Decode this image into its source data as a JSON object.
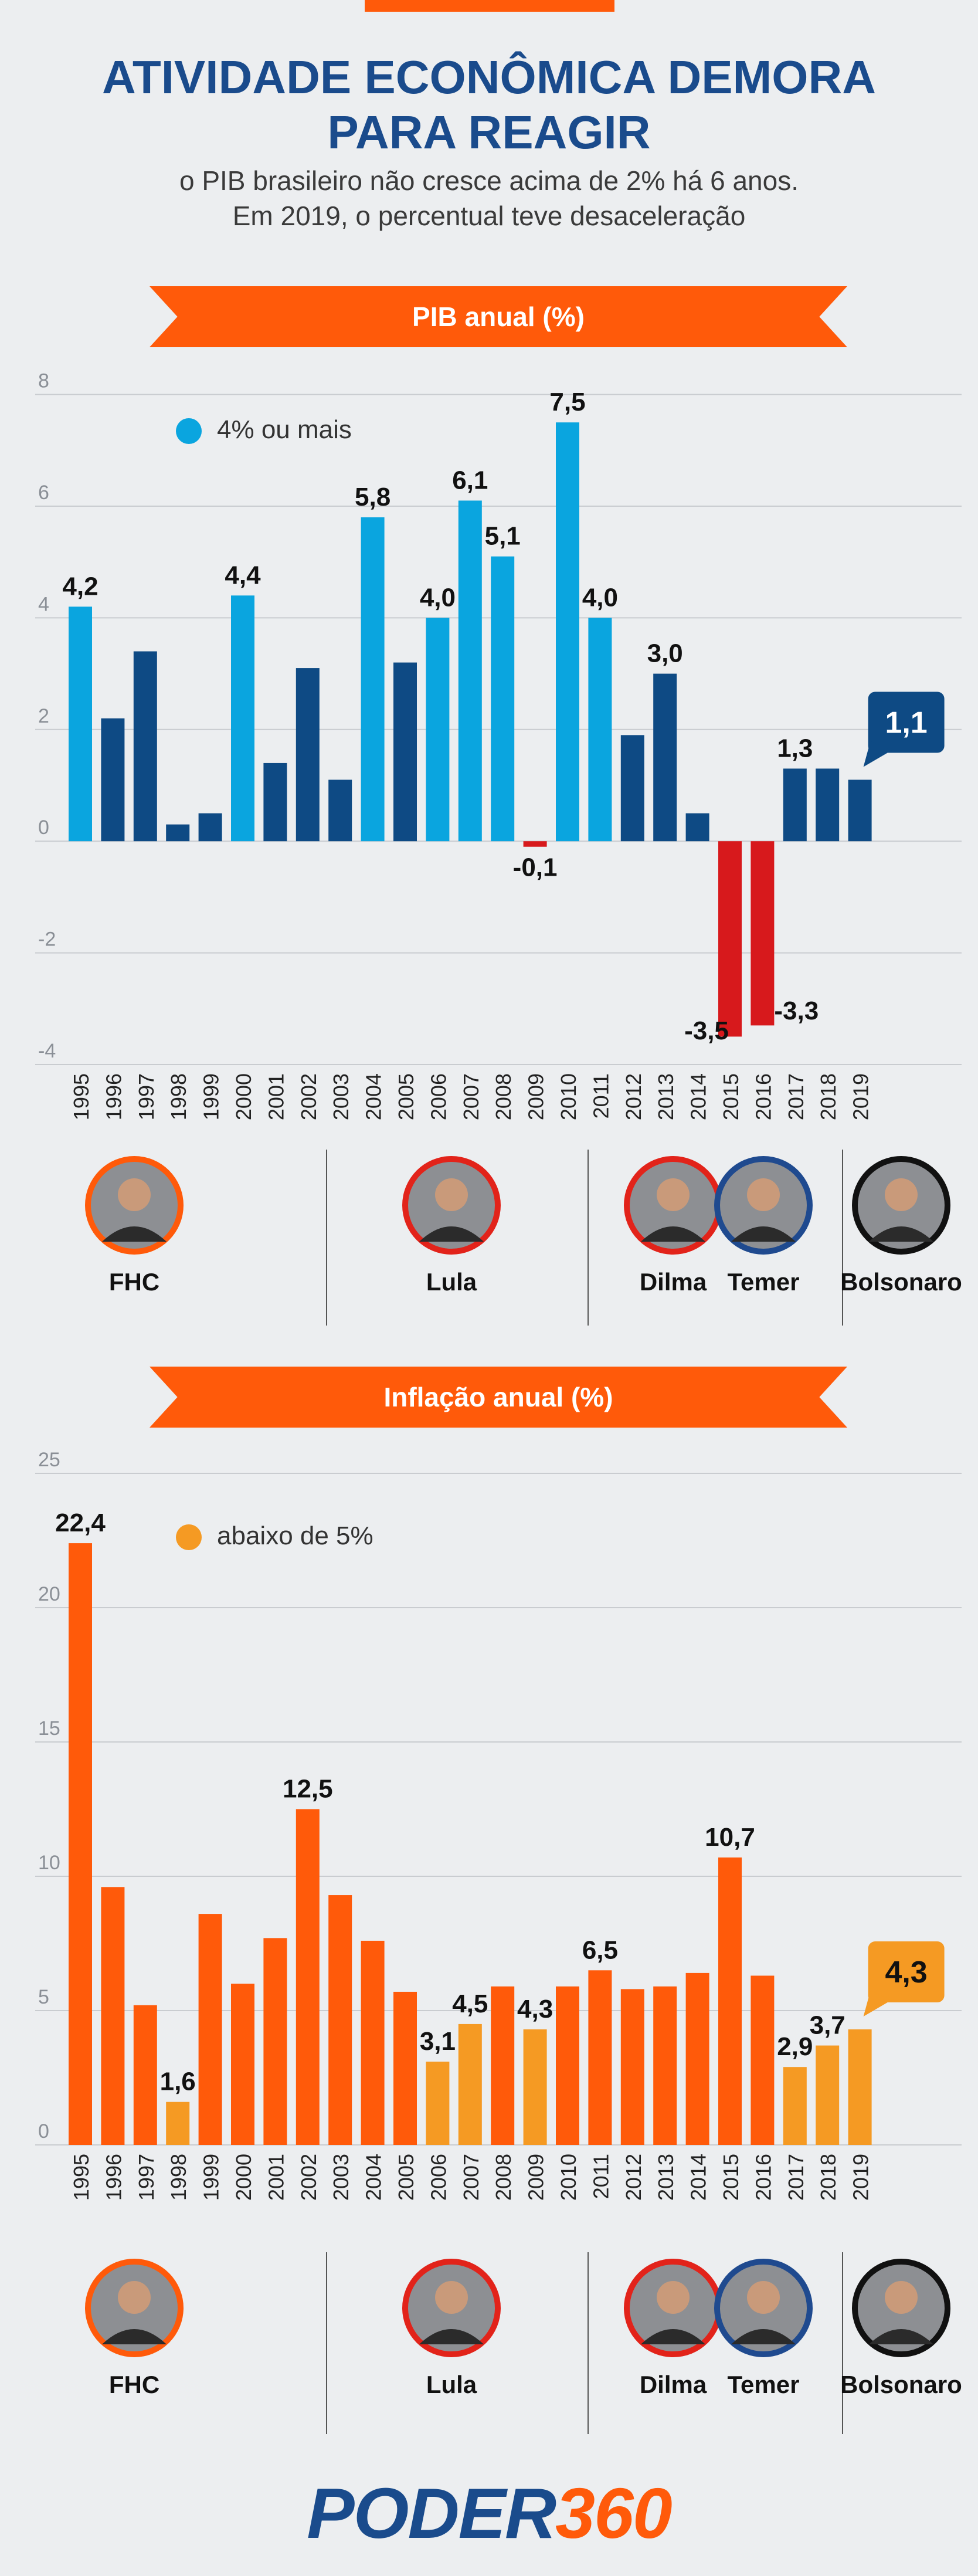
{
  "header": {
    "title_line1": "ATIVIDADE ECONÔMICA DEMORA",
    "title_line2": "PARA REAGIR",
    "subtitle_line1": "o PIB brasileiro não cresce acima de 2% há 6 anos.",
    "subtitle_line2": "Em 2019, o percentual teve desaceleração"
  },
  "colors": {
    "orange": "#ff5a0a",
    "navy": "#0e4a84",
    "cyan": "#0aa5df",
    "red": "#d7191c",
    "light_orange": "#f59a23",
    "title": "#1a4b8c"
  },
  "presidents": [
    {
      "name": "FHC",
      "ring": "#ff5a0a",
      "icon": "fhc-portrait"
    },
    {
      "name": "Lula",
      "ring": "#e2231a",
      "icon": "lula-portrait"
    },
    {
      "name": "Dilma",
      "ring": "#e2231a",
      "icon": "dilma-portrait"
    },
    {
      "name": "Temer",
      "ring": "#1f4a8f",
      "icon": "temer-portrait"
    },
    {
      "name": "Bolsonaro",
      "ring": "#111111",
      "icon": "bolsonaro-portrait"
    }
  ],
  "chart_data": [
    {
      "type": "bar",
      "title": "PIB anual (%)",
      "legend": "4% ou mais",
      "legend_placement": "top-left",
      "categories": [
        "1995",
        "1996",
        "1997",
        "1998",
        "1999",
        "2000",
        "2001",
        "2002",
        "2003",
        "2004",
        "2005",
        "2006",
        "2007",
        "2008",
        "2009",
        "2010",
        "2011",
        "2012",
        "2013",
        "2014",
        "2015",
        "2016",
        "2017",
        "2018",
        "2019"
      ],
      "values": [
        4.2,
        2.2,
        3.4,
        0.3,
        0.5,
        4.4,
        1.4,
        3.1,
        1.1,
        5.8,
        3.2,
        4.0,
        6.1,
        5.1,
        -0.1,
        7.5,
        4.0,
        1.9,
        3.0,
        0.5,
        -3.5,
        -3.3,
        1.3,
        1.3,
        1.1
      ],
      "labels": [
        "4,2",
        "",
        "",
        "",
        "",
        "4,4",
        "",
        "",
        "",
        "5,8",
        "",
        "4,0",
        "6,1",
        "5,1",
        "-0,1",
        "7,5",
        "4,0",
        "",
        "3,0",
        "",
        "-3,5",
        "-3,3",
        "1,3",
        "",
        "1,1"
      ],
      "highlight_label": "1,1",
      "ylim": [
        -4,
        8
      ],
      "yticks": [
        "8",
        "6",
        "4",
        "2",
        "0",
        "-2",
        "-4"
      ],
      "grid": true
    },
    {
      "type": "bar",
      "title": "Inflação anual (%)",
      "legend": "abaixo de 5%",
      "legend_placement": "top-left",
      "categories": [
        "1995",
        "1996",
        "1997",
        "1998",
        "1999",
        "2000",
        "2001",
        "2002",
        "2003",
        "2004",
        "2005",
        "2006",
        "2007",
        "2008",
        "2009",
        "2010",
        "2011",
        "2012",
        "2013",
        "2014",
        "2015",
        "2016",
        "2017",
        "2018",
        "2019"
      ],
      "values": [
        22.4,
        9.6,
        5.2,
        1.6,
        8.6,
        6.0,
        7.7,
        12.5,
        9.3,
        7.6,
        5.7,
        3.1,
        4.5,
        5.9,
        4.3,
        5.9,
        6.5,
        5.8,
        5.9,
        6.4,
        10.7,
        6.3,
        2.9,
        3.7,
        4.3
      ],
      "labels": [
        "22,4",
        "",
        "",
        "1,6",
        "",
        "",
        "",
        "12,5",
        "",
        "",
        "",
        "3,1",
        "4,5",
        "",
        "4,3",
        "",
        "6,5",
        "",
        "",
        "",
        "10,7",
        "",
        "2,9",
        "3,7",
        "4,3"
      ],
      "highlight_label": "4,3",
      "ylim": [
        0,
        25
      ],
      "yticks": [
        "25",
        "20",
        "15",
        "10",
        "5",
        "0"
      ],
      "grid": true
    }
  ],
  "logo": {
    "part1": "PODER",
    "part2": "360"
  }
}
